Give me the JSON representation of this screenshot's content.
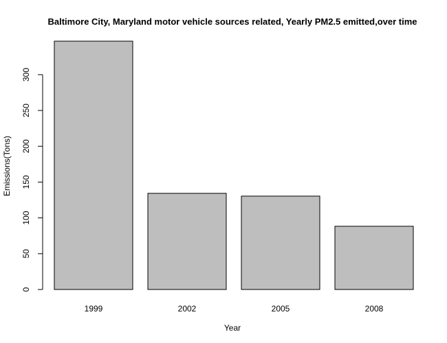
{
  "chart_data": {
    "type": "bar",
    "title": "Baltimore City, Maryland motor vehicle sources related, Yearly PM2.5 emitted,over time",
    "xlabel": "Year",
    "ylabel": "Emissions(Tons)",
    "categories": [
      "1999",
      "2002",
      "2005",
      "2008"
    ],
    "values": [
      346.8,
      134.3,
      130.4,
      88.3
    ],
    "ylim": [
      0,
      346.8
    ],
    "yticks": [
      0,
      50,
      100,
      150,
      200,
      250,
      300
    ],
    "bar_color": "#bebebe",
    "grid": false
  }
}
